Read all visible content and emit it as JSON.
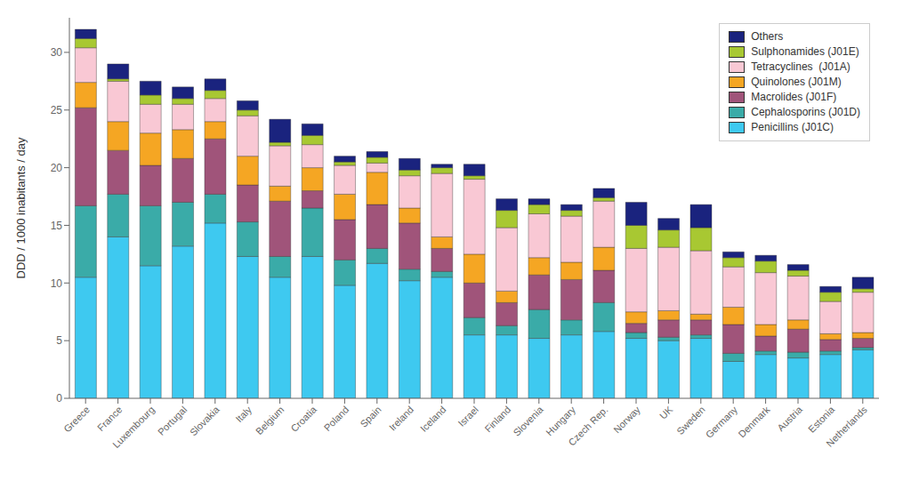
{
  "chart_data": {
    "type": "bar",
    "stacked": true,
    "categories": [
      "Greece",
      "France",
      "Luxembourg",
      "Portugal",
      "Slovakia",
      "Italy",
      "Belgium",
      "Croatia",
      "Poland",
      "Spain",
      "Ireland",
      "Iceland",
      "Israel",
      "Finland",
      "Slovenia",
      "Hungary",
      "Czech Rep.",
      "Norway",
      "UK",
      "Sweden",
      "Germany",
      "Denmark",
      "Austria",
      "Estonia",
      "Netherlands"
    ],
    "series": [
      {
        "name": "Penicillins (J01C)",
        "color": "#3EC9F0",
        "values": [
          10.5,
          14.0,
          11.5,
          13.2,
          15.2,
          12.3,
          10.5,
          12.3,
          9.8,
          11.7,
          10.2,
          10.5,
          5.5,
          5.5,
          5.2,
          5.5,
          5.8,
          5.2,
          5.0,
          5.2,
          3.2,
          3.8,
          3.5,
          3.8,
          4.2
        ]
      },
      {
        "name": "Cephalosporins (J01D)",
        "color": "#3AABA8",
        "values": [
          6.2,
          3.7,
          5.2,
          3.8,
          2.5,
          3.0,
          1.8,
          4.2,
          2.2,
          1.3,
          1.0,
          0.5,
          1.5,
          0.8,
          2.5,
          1.3,
          2.5,
          0.5,
          0.3,
          0.3,
          0.7,
          0.3,
          0.5,
          0.3,
          0.2
        ]
      },
      {
        "name": "Macrolides (J01F)",
        "color": "#A0547A",
        "values": [
          8.5,
          3.8,
          3.5,
          3.8,
          4.8,
          3.2,
          4.8,
          1.5,
          3.5,
          3.8,
          4.0,
          2.0,
          3.0,
          2.0,
          3.0,
          3.5,
          2.8,
          0.8,
          1.5,
          1.3,
          2.5,
          1.3,
          2.0,
          1.0,
          0.8
        ]
      },
      {
        "name": "Quinolones (J01M)",
        "color": "#F5A623",
        "values": [
          2.2,
          2.5,
          2.8,
          2.5,
          1.5,
          2.5,
          1.3,
          2.0,
          2.2,
          2.8,
          1.3,
          1.0,
          2.5,
          1.0,
          1.5,
          1.5,
          2.0,
          1.0,
          0.8,
          0.5,
          1.5,
          1.0,
          0.8,
          0.5,
          0.5
        ]
      },
      {
        "name": "Tetracyclines  (J01A)",
        "color": "#F9C8D4",
        "values": [
          3.0,
          3.5,
          2.5,
          2.2,
          2.0,
          3.5,
          3.5,
          2.0,
          2.5,
          0.8,
          2.8,
          5.5,
          6.5,
          5.5,
          3.8,
          4.0,
          4.0,
          5.5,
          5.5,
          5.5,
          3.5,
          4.5,
          3.8,
          2.8,
          3.5
        ]
      },
      {
        "name": "Sulphonamides (J01E)",
        "color": "#A8C832",
        "values": [
          0.8,
          0.2,
          0.8,
          0.5,
          0.7,
          0.5,
          0.3,
          0.8,
          0.3,
          0.5,
          0.5,
          0.5,
          0.3,
          1.5,
          0.8,
          0.5,
          0.3,
          2.0,
          1.5,
          2.0,
          0.8,
          1.0,
          0.5,
          0.8,
          0.3
        ]
      },
      {
        "name": "Others",
        "color": "#1A237E",
        "values": [
          0.8,
          1.3,
          1.2,
          1.0,
          1.0,
          0.8,
          2.0,
          1.0,
          0.5,
          0.5,
          1.0,
          0.3,
          1.0,
          1.0,
          0.5,
          0.5,
          0.8,
          2.0,
          1.0,
          2.0,
          0.5,
          0.5,
          0.5,
          0.5,
          1.0
        ]
      }
    ],
    "ylabel": "DDD / 1000 inabitants / day",
    "ylim": [
      0,
      33
    ],
    "yticks": [
      0,
      5,
      10,
      15,
      20,
      25,
      30
    ],
    "grid": false,
    "legend": "upper right"
  }
}
